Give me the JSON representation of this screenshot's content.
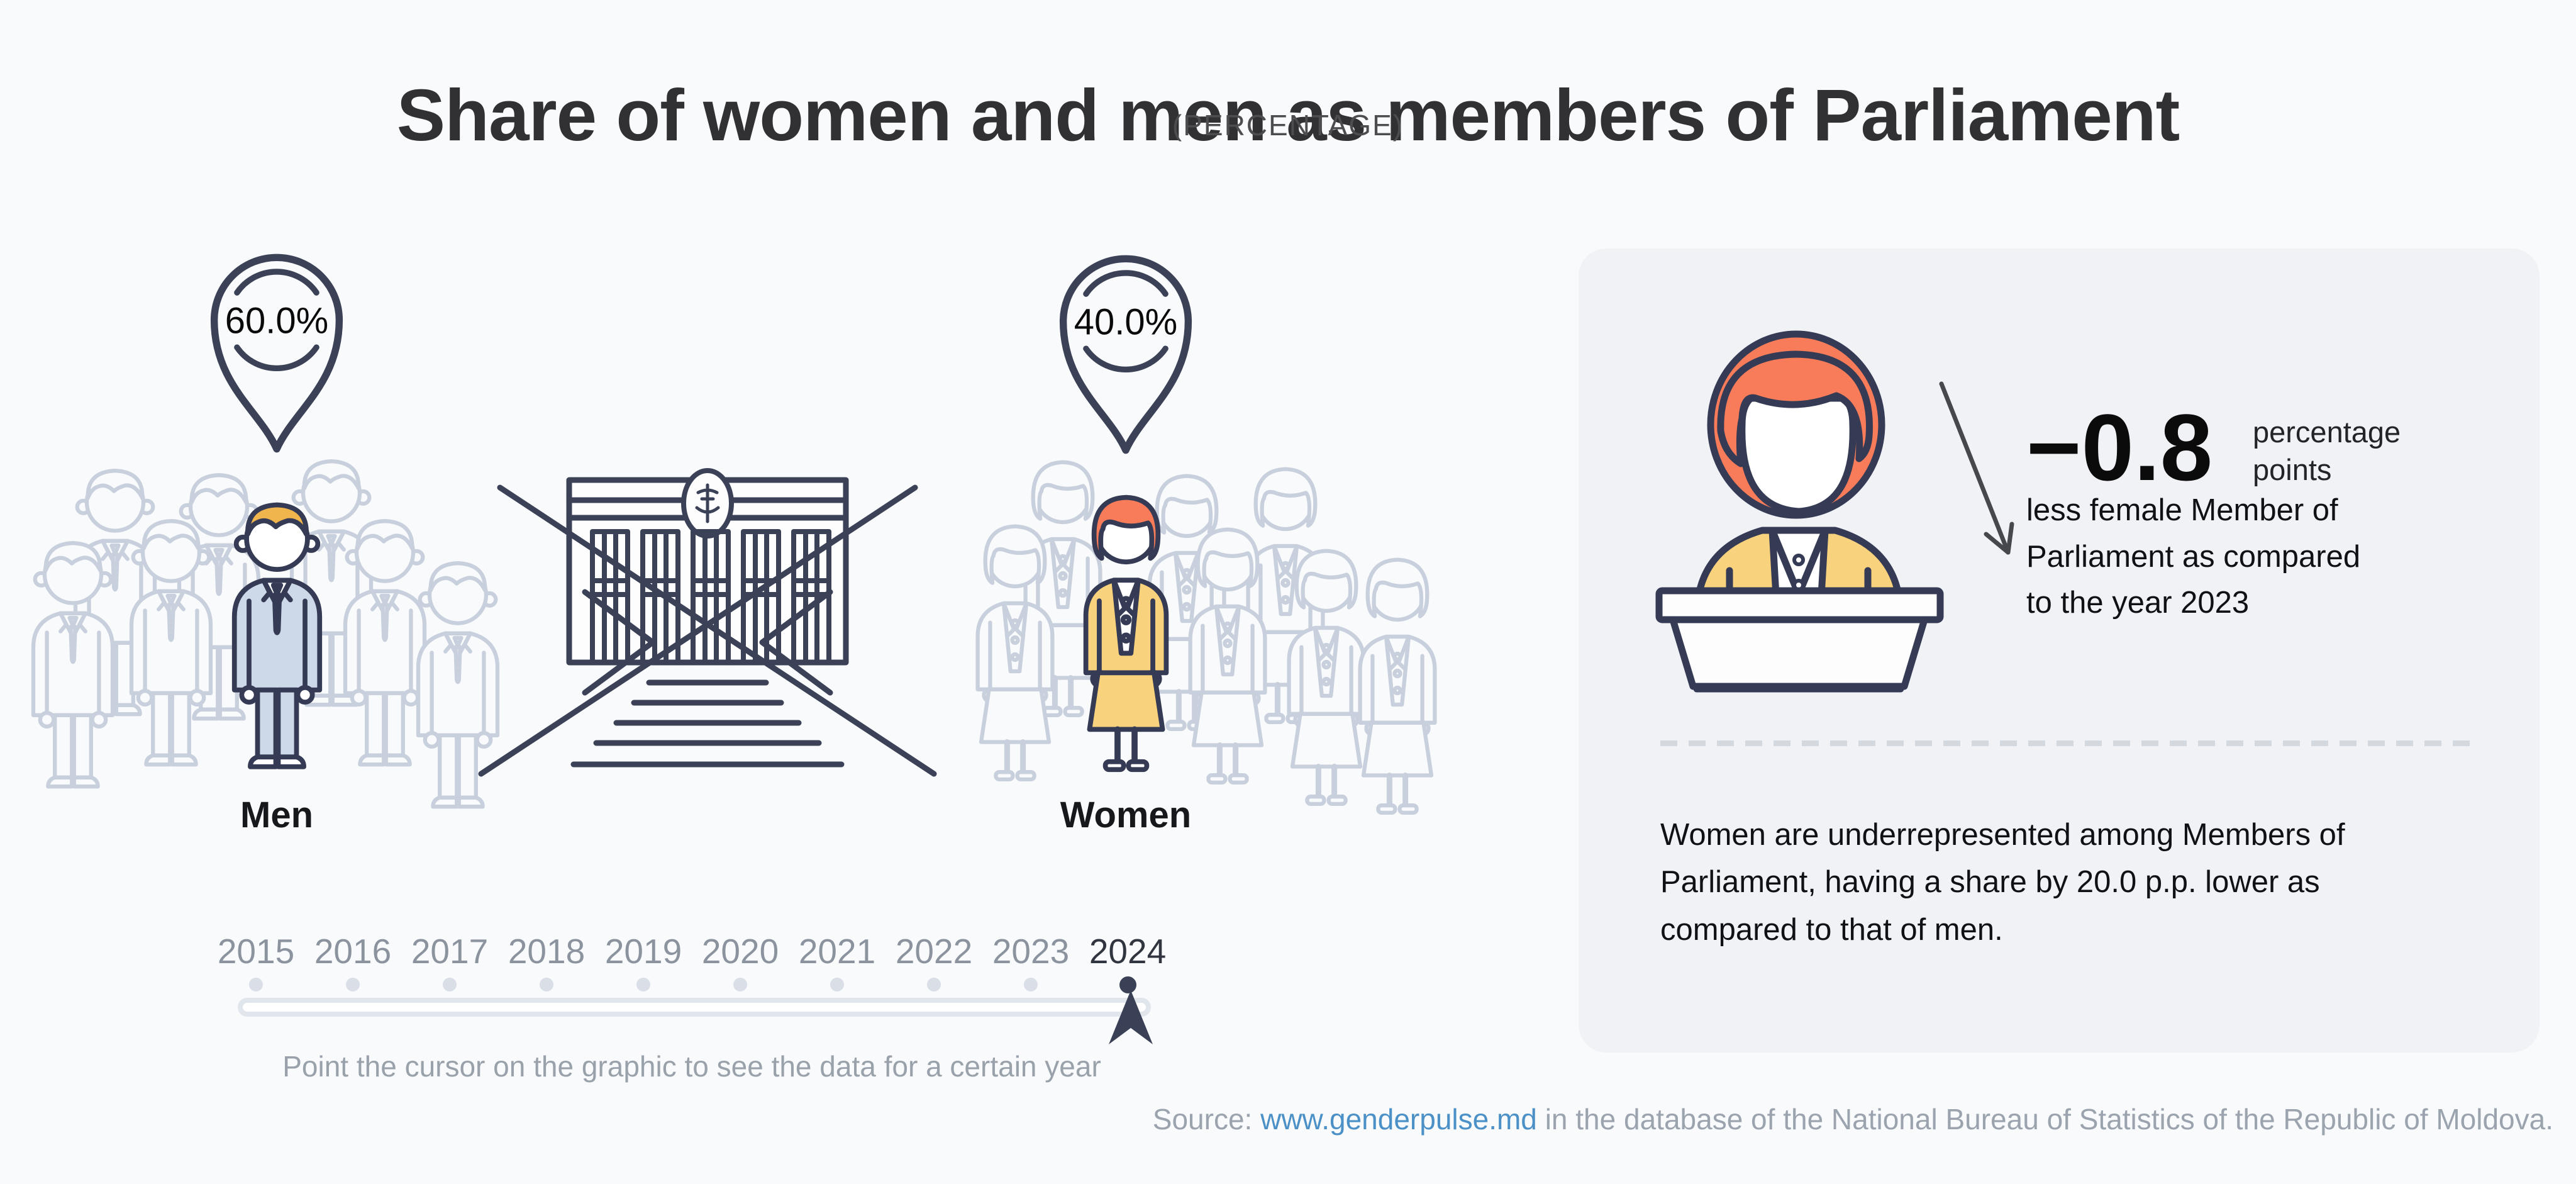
{
  "page": {
    "background": "#f9fafb",
    "title": "Share of women and men as members of Parliament",
    "subtitle": "(PERCENTAGE)"
  },
  "comparison": {
    "men": {
      "label": "Men",
      "value": "60.0%"
    },
    "women": {
      "label": "Women",
      "value": "40.0%"
    }
  },
  "timeline": {
    "years": [
      "2015",
      "2016",
      "2017",
      "2018",
      "2019",
      "2020",
      "2021",
      "2022",
      "2023",
      "2024"
    ],
    "selected_year": "2024",
    "instruction": "Point the cursor on the graphic to see the data for a certain year"
  },
  "insight_card": {
    "delta_value": "−0.8",
    "delta_unit": "percentage points",
    "delta_description": "less female Member of Parliament as compared to the year 2023",
    "summary": "Women are underrepresented among Members of Parliament, having a share by 20.0 p.p. lower as compared to that of men."
  },
  "source": {
    "prefix": "Source:",
    "link_text": "www.genderpulse.md",
    "suffix": "in the database of the National Bureau of Statistics of the Republic of Moldova."
  },
  "chart_data": {
    "type": "bar",
    "style": "pictogram-infographic",
    "title": "Share of women and men as members of Parliament",
    "subtitle": "(PERCENTAGE)",
    "categories": [
      "Men",
      "Women"
    ],
    "values": [
      60.0,
      40.0
    ],
    "unit": "%",
    "selected_year": 2024,
    "timeline_years": [
      2015,
      2016,
      2017,
      2018,
      2019,
      2020,
      2021,
      2022,
      2023,
      2024
    ],
    "women_change_vs_previous_year_pp": -0.8,
    "women_minus_men_gap_pp": -20.0,
    "grid": false,
    "legend_position": "none"
  },
  "colors": {
    "outline_navy": "#3b4157",
    "hair_orange": "#f87c59",
    "suit_yellow": "#f8d27d",
    "hair_gold": "#f1b54e",
    "suit_blue": "#cdd9e9",
    "silhouette_gray": "#c9d0dd",
    "card_background": "#f0f2f6",
    "link_blue": "#4b90c6",
    "muted_text": "#9aa3ae",
    "year_inactive": "#8b939f",
    "year_active": "#31353f"
  },
  "icons": {
    "share-pin": "map-pin teardrop outline containing the percentage value",
    "man-silhouette": "outlined standing man in a suit",
    "woman-silhouette": "outlined standing woman in a skirt suit",
    "parliament-building": "government building facade with emblem, columns and stairs",
    "woman-at-podium": "woman with orange hair in yellow jacket behind a speaker podium",
    "decline-arrow": "thin arrow pointing down-right",
    "timeline-cursor": "solid navy upward arrowhead marking the selected year",
    "timeline-dot": "small round tick above the timeline track"
  }
}
